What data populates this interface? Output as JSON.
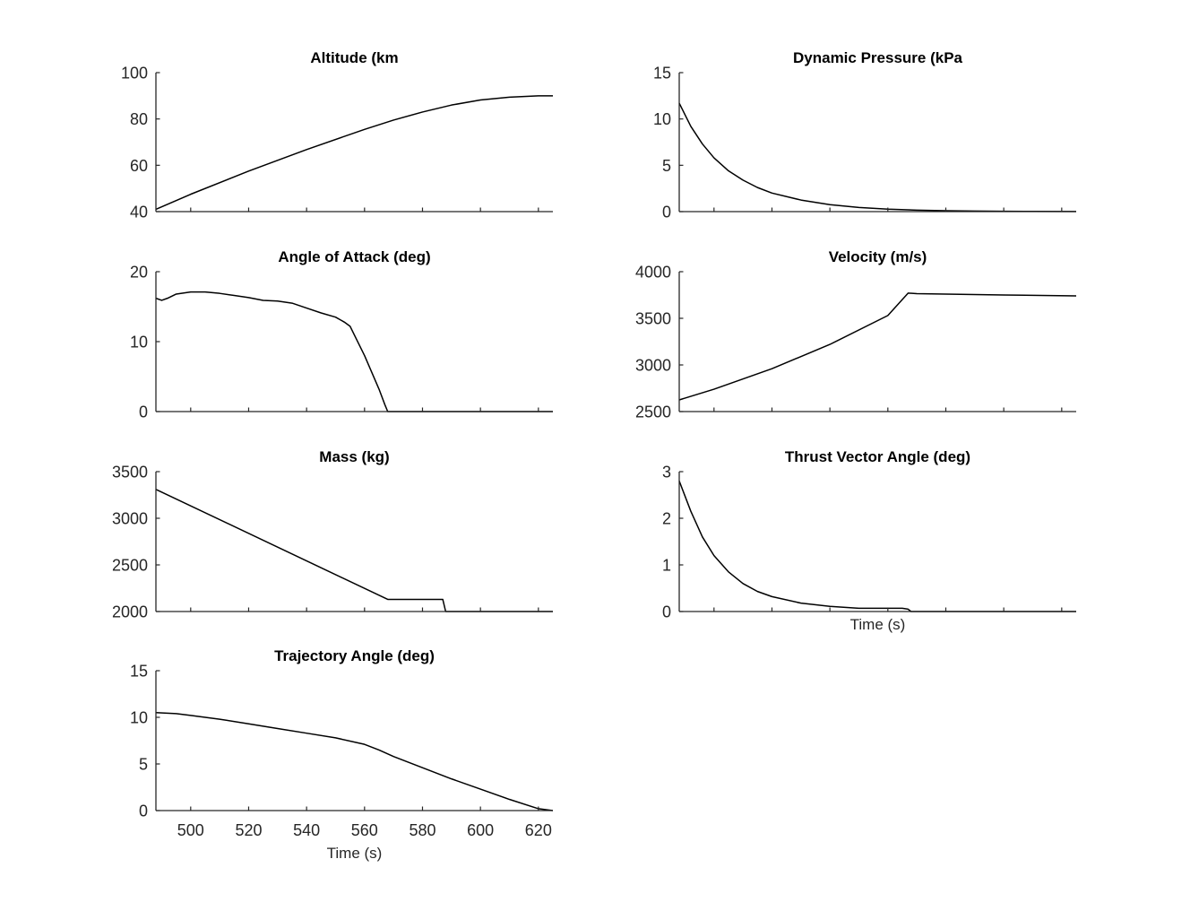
{
  "chart_data": [
    {
      "id": "altitude",
      "type": "line",
      "title": "Altitude (km",
      "xlabel": "",
      "ylabel": "",
      "xlim": [
        488,
        625
      ],
      "ylim": [
        40,
        100
      ],
      "xticks": [
        500,
        520,
        540,
        560,
        580,
        600,
        620
      ],
      "yticks": [
        40,
        60,
        80,
        100
      ],
      "show_xtick_labels": false,
      "grid": false,
      "series": [
        {
          "color": "#000000",
          "x": [
            488,
            500,
            520,
            540,
            560,
            570,
            580,
            590,
            600,
            610,
            620,
            625
          ],
          "y": [
            41,
            47.5,
            57.5,
            66.8,
            75.5,
            79.5,
            83,
            86,
            88.2,
            89.4,
            90,
            90
          ]
        }
      ]
    },
    {
      "id": "dynamic-pressure",
      "type": "line",
      "title": "Dynamic Pressure (kPa",
      "xlabel": "",
      "ylabel": "",
      "xlim": [
        488,
        625
      ],
      "ylim": [
        0,
        15
      ],
      "xticks": [
        500,
        520,
        540,
        560,
        580,
        600,
        620
      ],
      "yticks": [
        0,
        5,
        10,
        15
      ],
      "show_xtick_labels": false,
      "grid": false,
      "series": [
        {
          "color": "#000000",
          "x": [
            488,
            492,
            496,
            500,
            505,
            510,
            515,
            520,
            530,
            540,
            550,
            560,
            570,
            580,
            590,
            600,
            610,
            625
          ],
          "y": [
            11.7,
            9.2,
            7.3,
            5.8,
            4.4,
            3.4,
            2.6,
            2.0,
            1.25,
            0.75,
            0.45,
            0.27,
            0.16,
            0.1,
            0.06,
            0.04,
            0.02,
            0.01
          ]
        }
      ]
    },
    {
      "id": "angle-of-attack",
      "type": "line",
      "title": "Angle of Attack (deg)",
      "xlabel": "",
      "ylabel": "",
      "xlim": [
        488,
        625
      ],
      "ylim": [
        0,
        20
      ],
      "xticks": [
        500,
        520,
        540,
        560,
        580,
        600,
        620
      ],
      "yticks": [
        0,
        10,
        20
      ],
      "show_xtick_labels": false,
      "grid": false,
      "series": [
        {
          "color": "#000000",
          "x": [
            488,
            490,
            492,
            495,
            500,
            505,
            510,
            515,
            520,
            525,
            530,
            535,
            540,
            545,
            550,
            553,
            555,
            560,
            565,
            567,
            568,
            580,
            600,
            625
          ],
          "y": [
            16.2,
            15.9,
            16.2,
            16.8,
            17.1,
            17.1,
            16.9,
            16.6,
            16.3,
            15.9,
            15.8,
            15.5,
            14.8,
            14.1,
            13.5,
            12.8,
            12.2,
            8.0,
            3.2,
            1.0,
            0,
            0,
            0,
            0
          ]
        }
      ]
    },
    {
      "id": "velocity",
      "type": "line",
      "title": "Velocity (m/s)",
      "xlabel": "",
      "ylabel": "",
      "xlim": [
        488,
        625
      ],
      "ylim": [
        2500,
        4000
      ],
      "xticks": [
        500,
        520,
        540,
        560,
        580,
        600,
        620
      ],
      "yticks": [
        2500,
        3000,
        3500,
        4000
      ],
      "show_xtick_labels": false,
      "grid": false,
      "series": [
        {
          "color": "#000000",
          "x": [
            488,
            500,
            520,
            540,
            560,
            567,
            570,
            580,
            600,
            625
          ],
          "y": [
            2625,
            2740,
            2960,
            3220,
            3530,
            3770,
            3765,
            3760,
            3750,
            3740
          ]
        }
      ]
    },
    {
      "id": "mass",
      "type": "line",
      "title": "Mass (kg)",
      "xlabel": "",
      "ylabel": "",
      "xlim": [
        488,
        625
      ],
      "ylim": [
        2000,
        3500
      ],
      "xticks": [
        500,
        520,
        540,
        560,
        580,
        600,
        620
      ],
      "yticks": [
        2000,
        2500,
        3000,
        3500
      ],
      "show_xtick_labels": false,
      "grid": false,
      "series": [
        {
          "color": "#000000",
          "x": [
            488,
            568,
            587,
            588,
            600,
            625
          ],
          "y": [
            3310,
            2130,
            2130,
            2000,
            2000,
            2000
          ]
        }
      ]
    },
    {
      "id": "thrust-vector-angle",
      "type": "line",
      "title": "Thrust Vector Angle (deg)",
      "xlabel": "Time (s)",
      "ylabel": "",
      "xlim": [
        488,
        625
      ],
      "ylim": [
        0,
        3
      ],
      "xticks": [
        500,
        520,
        540,
        560,
        580,
        600,
        620
      ],
      "yticks": [
        0,
        1,
        2,
        3
      ],
      "show_xtick_labels": false,
      "grid": false,
      "series": [
        {
          "color": "#000000",
          "x": [
            488,
            492,
            496,
            500,
            505,
            510,
            515,
            520,
            530,
            540,
            550,
            560,
            565,
            567,
            568,
            580,
            600,
            625
          ],
          "y": [
            2.8,
            2.15,
            1.6,
            1.2,
            0.85,
            0.6,
            0.43,
            0.32,
            0.18,
            0.11,
            0.07,
            0.07,
            0.07,
            0.05,
            0,
            0,
            0,
            0
          ]
        }
      ]
    },
    {
      "id": "trajectory-angle",
      "type": "line",
      "title": "Trajectory Angle (deg)",
      "xlabel": "Time (s)",
      "ylabel": "",
      "xlim": [
        488,
        625
      ],
      "ylim": [
        0,
        15
      ],
      "xticks": [
        500,
        520,
        540,
        560,
        580,
        600,
        620
      ],
      "yticks": [
        0,
        5,
        10,
        15
      ],
      "show_xtick_labels": true,
      "grid": false,
      "series": [
        {
          "color": "#000000",
          "x": [
            488,
            495,
            500,
            510,
            520,
            530,
            540,
            550,
            560,
            565,
            570,
            580,
            590,
            600,
            610,
            620,
            625
          ],
          "y": [
            10.5,
            10.4,
            10.2,
            9.8,
            9.3,
            8.8,
            8.3,
            7.8,
            7.1,
            6.5,
            5.8,
            4.6,
            3.4,
            2.3,
            1.2,
            0.2,
            0
          ]
        }
      ]
    }
  ]
}
